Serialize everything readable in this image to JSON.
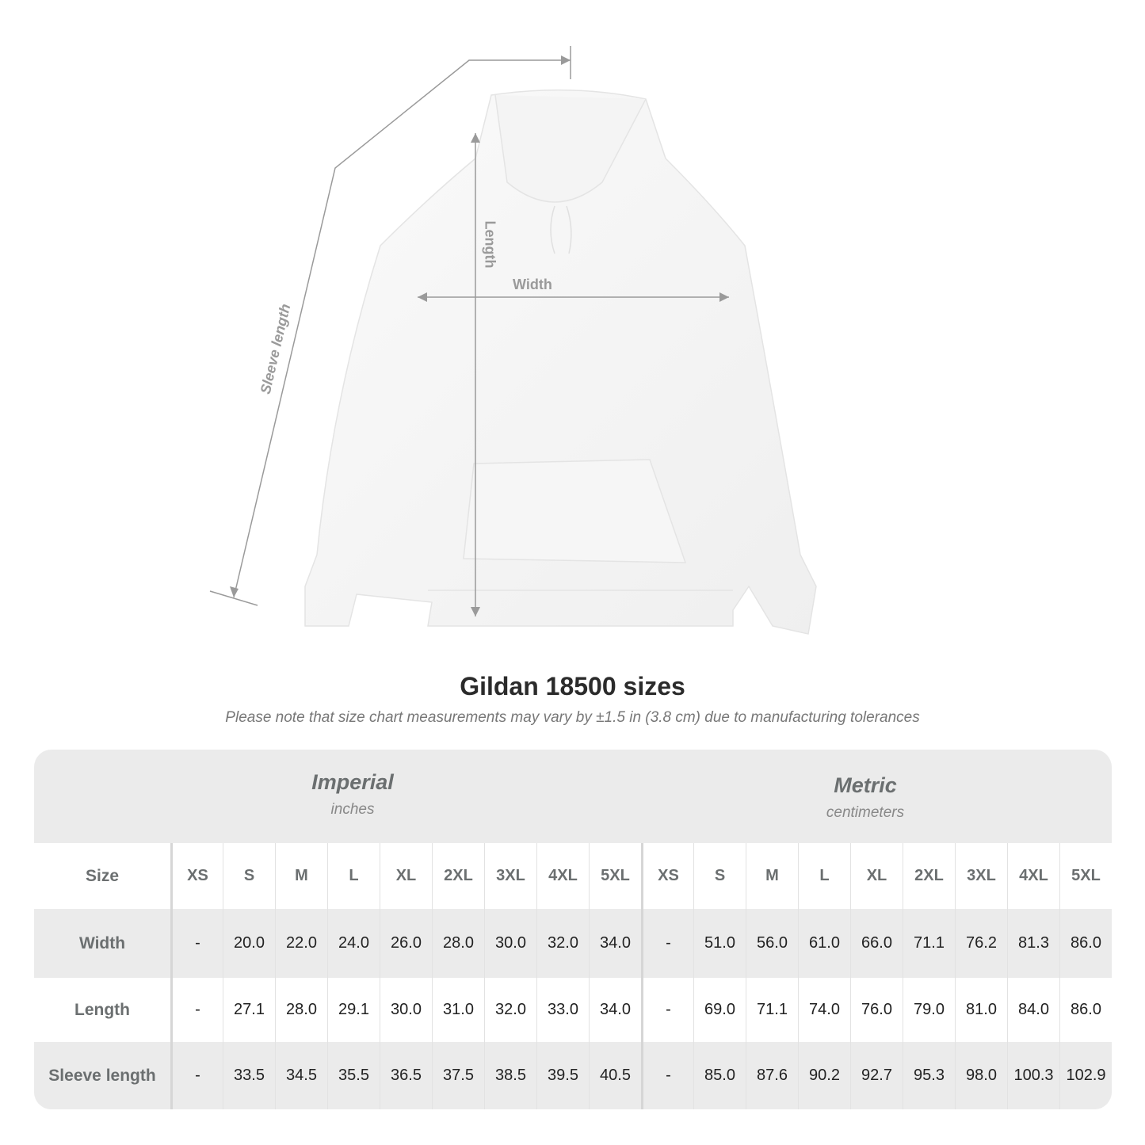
{
  "illustration": {
    "labels": {
      "sleeve": "Sleeve length",
      "length": "Length",
      "width": "Width"
    },
    "line_color": "#9a9a9a"
  },
  "title": "Gildan 18500 sizes",
  "subtitle": "Please note that size chart measurements may vary by ±1.5 in (3.8 cm) due to manufacturing tolerances",
  "table": {
    "imperial": {
      "system": "Imperial",
      "unit": "inches"
    },
    "metric": {
      "system": "Metric",
      "unit": "centimeters"
    },
    "size_label": "Size",
    "sizes": [
      "XS",
      "S",
      "M",
      "L",
      "XL",
      "2XL",
      "3XL",
      "4XL",
      "5XL"
    ],
    "rows": [
      {
        "label": "Width",
        "imperial": [
          "-",
          "20.0",
          "22.0",
          "24.0",
          "26.0",
          "28.0",
          "30.0",
          "32.0",
          "34.0"
        ],
        "metric": [
          "-",
          "51.0",
          "56.0",
          "61.0",
          "66.0",
          "71.1",
          "76.2",
          "81.3",
          "86.0"
        ]
      },
      {
        "label": "Length",
        "imperial": [
          "-",
          "27.1",
          "28.0",
          "29.1",
          "30.0",
          "31.0",
          "32.0",
          "33.0",
          "34.0"
        ],
        "metric": [
          "-",
          "69.0",
          "71.1",
          "74.0",
          "76.0",
          "79.0",
          "81.0",
          "84.0",
          "86.0"
        ]
      },
      {
        "label": "Sleeve length",
        "imperial": [
          "-",
          "33.5",
          "34.5",
          "35.5",
          "36.5",
          "37.5",
          "38.5",
          "39.5",
          "40.5"
        ],
        "metric": [
          "-",
          "85.0",
          "87.6",
          "90.2",
          "92.7",
          "95.3",
          "98.0",
          "100.3",
          "102.9"
        ]
      }
    ]
  }
}
